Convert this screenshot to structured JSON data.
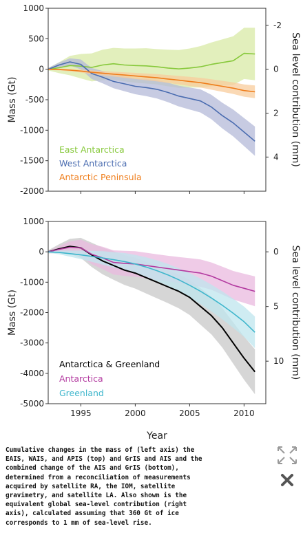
{
  "figure": {
    "caption": "Cumulative changes in the mass of (left axis) the EAIS, WAIS, and APIS (top) and GrIS and AIS and the combined change of the AIS and GrIS (bottom), determined from a reconciliation of measurements acquired by satellite RA, the IOM, satellite gravimetry, and satellite LA. Also shown is the equivalent global sea-level contribution (right axis), calculated assuming that 360 Gt of ice corresponds to 1 mm of sea-level rise.",
    "xlabel": "Year",
    "controls": {
      "expand_icon": "expand-arrows-icon",
      "close_icon": "close-x-icon"
    }
  },
  "chart_data": [
    {
      "type": "line",
      "ylabel": "Mass (Gt)",
      "y2label": "Sea level contribution (mm)",
      "xlim": [
        1992,
        2012
      ],
      "ylim": [
        -2000,
        1000
      ],
      "xticks": [
        1995,
        2000,
        2005,
        2010
      ],
      "yticks": [
        1000,
        500,
        0,
        -500,
        -1000,
        -1500,
        -2000
      ],
      "y2ticks": [
        -2,
        0,
        2,
        4
      ],
      "y2_scale_gt_per_mm": 360,
      "grid": false,
      "legend_placement": "bottom-left",
      "series": [
        {
          "name": "East Antarctica",
          "color": "#86c83a",
          "band_color": "#d8e9a6",
          "x": [
            1992,
            1993,
            1994,
            1995,
            1996,
            1997,
            1998,
            1999,
            2000,
            2001,
            2002,
            2003,
            2004,
            2005,
            2006,
            2007,
            2008,
            2009,
            2010,
            2011
          ],
          "values": [
            0,
            25,
            60,
            50,
            30,
            70,
            90,
            70,
            60,
            55,
            40,
            20,
            5,
            20,
            40,
            80,
            110,
            140,
            260,
            250
          ],
          "band_half_width": [
            20,
            90,
            160,
            200,
            230,
            250,
            260,
            270,
            280,
            290,
            290,
            300,
            310,
            320,
            340,
            360,
            380,
            400,
            420,
            430
          ]
        },
        {
          "name": "West Antarctica",
          "color": "#4a6cb0",
          "band_color": "#b4bad8",
          "x": [
            1992,
            1993,
            1994,
            1995,
            1996,
            1997,
            1998,
            1999,
            2000,
            2001,
            2002,
            2003,
            2004,
            2005,
            2006,
            2007,
            2008,
            2009,
            2010,
            2011
          ],
          "values": [
            0,
            70,
            120,
            80,
            -70,
            -130,
            -200,
            -240,
            -280,
            -300,
            -330,
            -380,
            -440,
            -480,
            -520,
            -620,
            -760,
            -880,
            -1030,
            -1180
          ],
          "band_half_width": [
            20,
            40,
            60,
            80,
            90,
            100,
            110,
            120,
            130,
            140,
            150,
            160,
            170,
            180,
            190,
            200,
            210,
            220,
            230,
            240
          ]
        },
        {
          "name": "Antarctic Peninsula",
          "color": "#ef7d1a",
          "band_color": "#f8cc9c",
          "x": [
            1992,
            1993,
            1994,
            1995,
            1996,
            1997,
            1998,
            1999,
            2000,
            2001,
            2002,
            2003,
            2004,
            2005,
            2006,
            2007,
            2008,
            2009,
            2010,
            2011
          ],
          "values": [
            0,
            -5,
            -15,
            -30,
            -50,
            -65,
            -80,
            -95,
            -110,
            -125,
            -140,
            -160,
            -180,
            -200,
            -220,
            -250,
            -280,
            -310,
            -350,
            -370
          ],
          "band_half_width": [
            10,
            15,
            20,
            25,
            30,
            35,
            40,
            45,
            50,
            55,
            60,
            65,
            70,
            75,
            80,
            85,
            90,
            95,
            100,
            105
          ]
        }
      ]
    },
    {
      "type": "line",
      "ylabel": "Mass (Gt)",
      "y2label": "Sea level contribution (mm)",
      "xlabel": "Year",
      "xlim": [
        1992,
        2012
      ],
      "ylim": [
        -5000,
        1000
      ],
      "xticks": [
        1995,
        2000,
        2005,
        2010
      ],
      "xticklabels": [
        "1995",
        "2000",
        "2005",
        "2010"
      ],
      "yticks": [
        1000,
        0,
        -1000,
        -2000,
        -3000,
        -4000,
        -5000
      ],
      "y2ticks": [
        0,
        5,
        10
      ],
      "y2_scale_gt_per_mm": 360,
      "grid": false,
      "legend_placement": "bottom-left",
      "series": [
        {
          "name": "Antarctica & Greenland",
          "color": "#000000",
          "band_color": "#c8c8c8",
          "x": [
            1992,
            1993,
            1994,
            1995,
            1996,
            1997,
            1998,
            1999,
            2000,
            2001,
            2002,
            2003,
            2004,
            2005,
            2006,
            2007,
            2008,
            2009,
            2010,
            2011
          ],
          "values": [
            0,
            100,
            180,
            130,
            -100,
            -300,
            -450,
            -600,
            -700,
            -850,
            -1000,
            -1150,
            -1300,
            -1500,
            -1800,
            -2100,
            -2500,
            -3000,
            -3500,
            -3950
          ],
          "band_half_width": [
            50,
            150,
            250,
            330,
            400,
            440,
            470,
            490,
            510,
            520,
            530,
            540,
            560,
            580,
            600,
            620,
            650,
            680,
            710,
            740
          ]
        },
        {
          "name": "Antarctica",
          "color": "#b33aa0",
          "band_color": "#eab9df",
          "x": [
            1992,
            1993,
            1994,
            1995,
            1996,
            1997,
            1998,
            1999,
            2000,
            2001,
            2002,
            2003,
            2004,
            2005,
            2006,
            2007,
            2008,
            2009,
            2010,
            2011
          ],
          "values": [
            0,
            80,
            150,
            130,
            -80,
            -200,
            -350,
            -380,
            -400,
            -450,
            -500,
            -550,
            -600,
            -650,
            -700,
            -800,
            -950,
            -1100,
            -1200,
            -1300
          ],
          "band_half_width": [
            30,
            100,
            200,
            270,
            330,
            370,
            400,
            410,
            420,
            420,
            420,
            420,
            430,
            440,
            450,
            450,
            460,
            470,
            480,
            490
          ]
        },
        {
          "name": "Greenland",
          "color": "#3eb6cc",
          "band_color": "#bfe5ee",
          "x": [
            1992,
            1993,
            1994,
            1995,
            1996,
            1997,
            1998,
            1999,
            2000,
            2001,
            2002,
            2003,
            2004,
            2005,
            2006,
            2007,
            2008,
            2009,
            2010,
            2011
          ],
          "values": [
            0,
            -20,
            -60,
            -100,
            -150,
            -200,
            -260,
            -320,
            -400,
            -500,
            -620,
            -760,
            -920,
            -1100,
            -1300,
            -1520,
            -1760,
            -2020,
            -2300,
            -2650
          ],
          "band_half_width": [
            30,
            60,
            100,
            140,
            180,
            220,
            250,
            280,
            300,
            320,
            340,
            360,
            380,
            400,
            420,
            440,
            460,
            480,
            500,
            520
          ]
        }
      ]
    }
  ]
}
